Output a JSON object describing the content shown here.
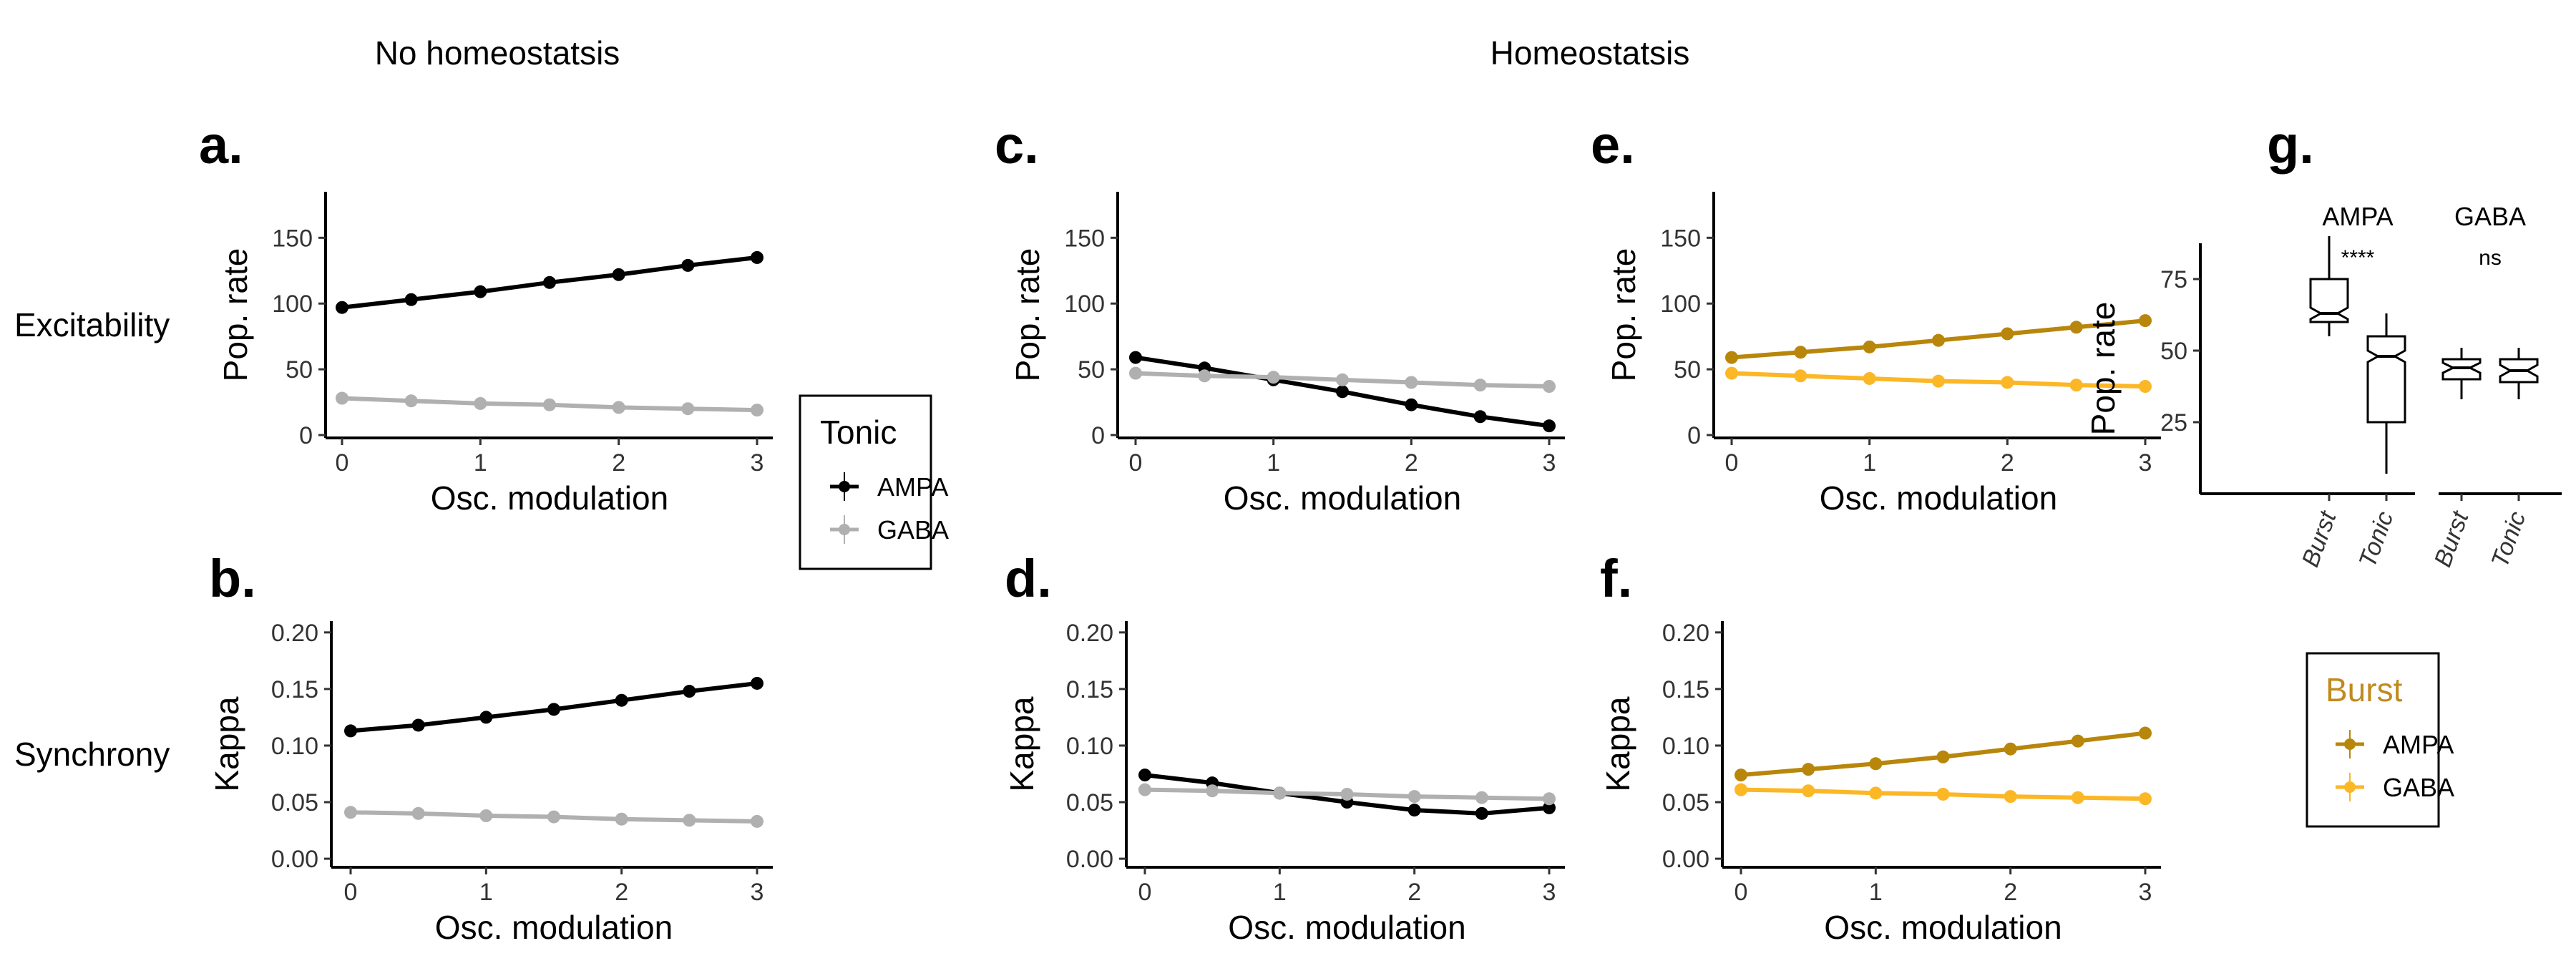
{
  "column_headers": [
    "No homeostatsis",
    "Homeostatsis"
  ],
  "row_headers": [
    "Excitability",
    "Synchrony"
  ],
  "colors": {
    "tonic_ampa": "#000000",
    "tonic_gaba": "#b0b0b0",
    "burst_ampa": "#b8860b",
    "burst_gaba": "#fbb726",
    "burst_title": "#c08a1e"
  },
  "legends": {
    "tonic": {
      "title": "Tonic",
      "items": [
        "AMPA",
        "GABA"
      ]
    },
    "burst": {
      "title": "Burst",
      "items": [
        "AMPA",
        "GABA"
      ]
    }
  },
  "chart_data": [
    {
      "panel": "a.",
      "type": "line",
      "xlabel": "Osc. modulation",
      "ylabel": "Pop. rate",
      "xlim": [
        0,
        3
      ],
      "ylim": [
        0,
        185
      ],
      "xticks": [
        0,
        1,
        2,
        3
      ],
      "yticks": [
        0,
        50,
        100,
        150
      ],
      "x": [
        0,
        0.5,
        1,
        1.5,
        2,
        2.5,
        3
      ],
      "series": [
        {
          "name": "AMPA",
          "group": "Tonic",
          "color": "#000000",
          "values": [
            97,
            103,
            109,
            116,
            122,
            129,
            135
          ]
        },
        {
          "name": "GABA",
          "group": "Tonic",
          "color": "#b0b0b0",
          "values": [
            28,
            26,
            24,
            23,
            21,
            20,
            19
          ]
        }
      ]
    },
    {
      "panel": "b.",
      "type": "line",
      "xlabel": "Osc. modulation",
      "ylabel": "Kappa",
      "xlim": [
        0,
        3
      ],
      "ylim": [
        -0.005,
        0.21
      ],
      "xticks": [
        0,
        1,
        2,
        3
      ],
      "yticks": [
        0.0,
        0.05,
        0.1,
        0.15,
        0.2
      ],
      "ytick_labels": [
        "0.00",
        "0.05",
        "0.10",
        "0.15",
        "0.20"
      ],
      "x": [
        0,
        0.5,
        1,
        1.5,
        2,
        2.5,
        3
      ],
      "series": [
        {
          "name": "AMPA",
          "group": "Tonic",
          "color": "#000000",
          "values": [
            0.113,
            0.118,
            0.125,
            0.132,
            0.14,
            0.148,
            0.155
          ]
        },
        {
          "name": "GABA",
          "group": "Tonic",
          "color": "#b0b0b0",
          "values": [
            0.041,
            0.04,
            0.038,
            0.037,
            0.035,
            0.034,
            0.033
          ]
        }
      ]
    },
    {
      "panel": "c.",
      "type": "line",
      "xlabel": "Osc. modulation",
      "ylabel": "Pop. rate",
      "xlim": [
        0,
        3
      ],
      "ylim": [
        0,
        185
      ],
      "xticks": [
        0,
        1,
        2,
        3
      ],
      "yticks": [
        0,
        50,
        100,
        150
      ],
      "x": [
        0,
        0.5,
        1,
        1.5,
        2,
        2.5,
        3
      ],
      "series": [
        {
          "name": "AMPA",
          "group": "Tonic",
          "color": "#000000",
          "values": [
            59,
            51,
            42,
            33,
            23,
            14,
            7
          ]
        },
        {
          "name": "GABA",
          "group": "Tonic",
          "color": "#b0b0b0",
          "values": [
            47,
            45,
            44,
            42,
            40,
            38,
            37
          ]
        }
      ]
    },
    {
      "panel": "d.",
      "type": "line",
      "xlabel": "Osc. modulation",
      "ylabel": "Kappa",
      "xlim": [
        0,
        3
      ],
      "ylim": [
        -0.005,
        0.21
      ],
      "xticks": [
        0,
        1,
        2,
        3
      ],
      "yticks": [
        0.0,
        0.05,
        0.1,
        0.15,
        0.2
      ],
      "ytick_labels": [
        "0.00",
        "0.05",
        "0.10",
        "0.15",
        "0.20"
      ],
      "x": [
        0,
        0.5,
        1,
        1.5,
        2,
        2.5,
        3
      ],
      "series": [
        {
          "name": "AMPA",
          "group": "Tonic",
          "color": "#000000",
          "values": [
            0.074,
            0.067,
            0.058,
            0.05,
            0.043,
            0.04,
            0.045
          ]
        },
        {
          "name": "GABA",
          "group": "Tonic",
          "color": "#b0b0b0",
          "values": [
            0.061,
            0.06,
            0.058,
            0.057,
            0.055,
            0.054,
            0.053
          ]
        }
      ]
    },
    {
      "panel": "e.",
      "type": "line",
      "xlabel": "Osc. modulation",
      "ylabel": "Pop. rate",
      "xlim": [
        0,
        3
      ],
      "ylim": [
        0,
        185
      ],
      "xticks": [
        0,
        1,
        2,
        3
      ],
      "yticks": [
        0,
        50,
        100,
        150
      ],
      "x": [
        0,
        0.5,
        1,
        1.5,
        2,
        2.5,
        3
      ],
      "series": [
        {
          "name": "AMPA",
          "group": "Burst",
          "color": "#b8860b",
          "values": [
            59,
            63,
            67,
            72,
            77,
            82,
            87
          ]
        },
        {
          "name": "GABA",
          "group": "Burst",
          "color": "#fbb726",
          "values": [
            47,
            45,
            43,
            41,
            40,
            38,
            37
          ]
        }
      ]
    },
    {
      "panel": "f.",
      "type": "line",
      "xlabel": "Osc. modulation",
      "ylabel": "Kappa",
      "xlim": [
        0,
        3
      ],
      "ylim": [
        -0.005,
        0.21
      ],
      "xticks": [
        0,
        1,
        2,
        3
      ],
      "yticks": [
        0.0,
        0.05,
        0.1,
        0.15,
        0.2
      ],
      "ytick_labels": [
        "0.00",
        "0.05",
        "0.10",
        "0.15",
        "0.20"
      ],
      "x": [
        0,
        0.5,
        1,
        1.5,
        2,
        2.5,
        3
      ],
      "series": [
        {
          "name": "AMPA",
          "group": "Burst",
          "color": "#b8860b",
          "values": [
            0.074,
            0.079,
            0.084,
            0.09,
            0.097,
            0.104,
            0.111
          ]
        },
        {
          "name": "GABA",
          "group": "Burst",
          "color": "#fbb726",
          "values": [
            0.061,
            0.06,
            0.058,
            0.057,
            0.055,
            0.054,
            0.053
          ]
        }
      ]
    },
    {
      "panel": "g.",
      "type": "box",
      "ylabel": "Pop. rate",
      "ylim": [
        0,
        100
      ],
      "yticks": [
        25,
        50,
        75
      ],
      "categories": [
        "Burst",
        "Tonic"
      ],
      "facets": [
        {
          "label": "AMPA",
          "significance": "****",
          "boxes": [
            {
              "category": "Burst",
              "min": 55,
              "q1": 60,
              "median": 63,
              "q3": 75,
              "max": 90
            },
            {
              "category": "Tonic",
              "min": 7,
              "q1": 25,
              "median": 48,
              "q3": 55,
              "max": 63
            }
          ]
        },
        {
          "label": "GABA",
          "significance": "ns",
          "boxes": [
            {
              "category": "Burst",
              "min": 33,
              "q1": 40,
              "median": 44,
              "q3": 47,
              "max": 51
            },
            {
              "category": "Tonic",
              "min": 33,
              "q1": 39,
              "median": 43,
              "q3": 47,
              "max": 51
            }
          ]
        }
      ]
    }
  ]
}
